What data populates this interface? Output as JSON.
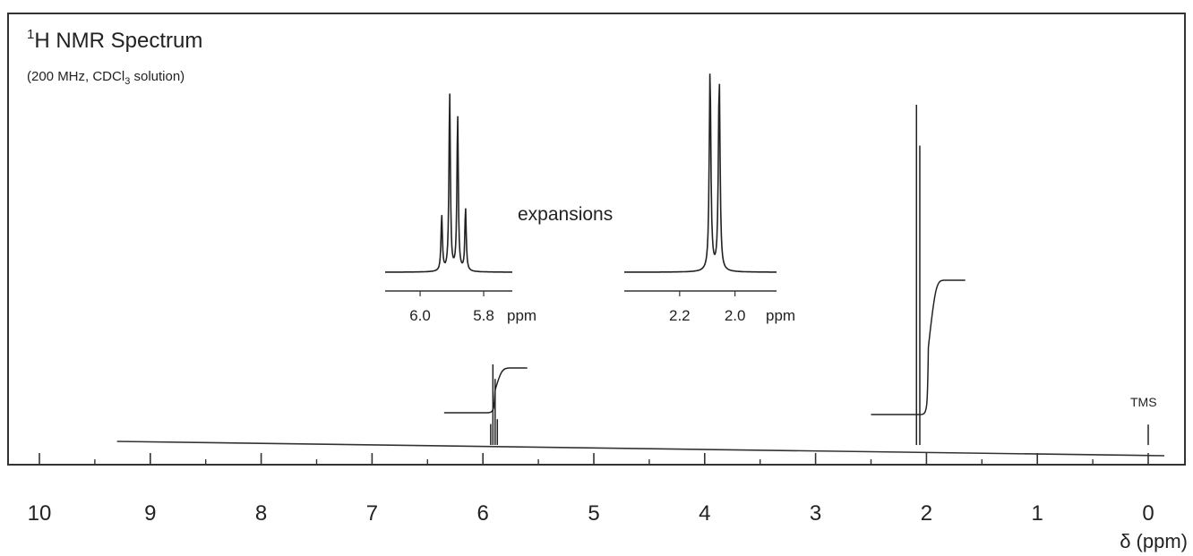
{
  "chart_data": {
    "type": "line",
    "title": "H NMR Spectrum",
    "title_superscript": "1",
    "subtitle_before_sub": "(200 MHz, CDCl",
    "subtitle_sub": "3",
    "subtitle_after_sub": " solution)",
    "xlabel": "δ (ppm)",
    "x_reversed": true,
    "xlim": [
      10,
      0
    ],
    "major_ticks": [
      10,
      9,
      8,
      7,
      6,
      5,
      4,
      3,
      2,
      1,
      0
    ],
    "major_tick_labels": [
      "10",
      "9",
      "8",
      "7",
      "6",
      "5",
      "4",
      "3",
      "2",
      "1",
      "0"
    ],
    "minor_ticks": [
      9.5,
      8.5,
      7.5,
      6.5,
      5.5,
      4.5,
      3.5,
      2.5,
      1.5,
      0.5
    ],
    "baseline_start_ppm": 9.3,
    "peaks": [
      {
        "name": "vinyl multiplet",
        "ppm": [
          5.93,
          5.91,
          5.89,
          5.87
        ],
        "relative_height": [
          0.26,
          1.0,
          0.82,
          0.32
        ]
      },
      {
        "name": "doublet",
        "ppm": [
          2.09,
          2.06
        ],
        "relative_height": [
          1.0,
          0.88
        ]
      },
      {
        "name": "TMS",
        "ppm": [
          0.0
        ],
        "relative_height": [
          0.06
        ]
      }
    ],
    "peak_labels": [
      {
        "text": "TMS",
        "ppm": 0.0
      }
    ],
    "integrals": [
      {
        "from_ppm": 6.35,
        "to_ppm": 5.6,
        "relative_step": 1
      },
      {
        "from_ppm": 2.5,
        "to_ppm": 1.65,
        "relative_step": 3
      }
    ],
    "expansions_label": "expansions",
    "insets": [
      {
        "name": "inset-vinyl",
        "xlim": [
          6.11,
          5.71
        ],
        "ticks": [
          6.0,
          5.8
        ],
        "tick_labels": [
          "6.0",
          "5.8"
        ],
        "unit": "ppm",
        "peaks": [
          {
            "ppm": 5.932,
            "h": 0.31
          },
          {
            "ppm": 5.907,
            "h": 1.0
          },
          {
            "ppm": 5.882,
            "h": 0.87
          },
          {
            "ppm": 5.857,
            "h": 0.35
          }
        ]
      },
      {
        "name": "inset-methyl",
        "xlim": [
          2.4,
          1.85
        ],
        "ticks": [
          2.2,
          2.0
        ],
        "tick_labels": [
          "2.2",
          "2.0"
        ],
        "unit": "ppm",
        "peaks": [
          {
            "ppm": 2.09,
            "h": 1.0
          },
          {
            "ppm": 2.057,
            "h": 0.96
          }
        ]
      }
    ]
  }
}
